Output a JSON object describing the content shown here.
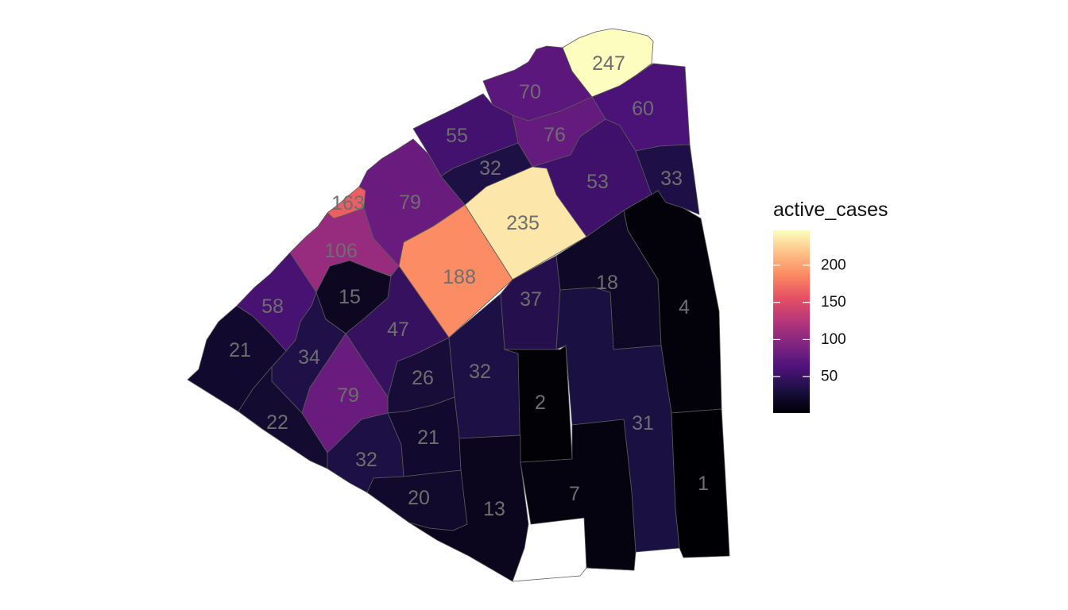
{
  "map": {
    "fill_variable": "active_cases",
    "palette": "magma",
    "regions": [
      {
        "id": "r247",
        "value": 247,
        "label": "247"
      },
      {
        "id": "r70",
        "value": 70,
        "label": "70"
      },
      {
        "id": "r60",
        "value": 60,
        "label": "60"
      },
      {
        "id": "r55",
        "value": 55,
        "label": "55"
      },
      {
        "id": "r76",
        "value": 76,
        "label": "76"
      },
      {
        "id": "r32a",
        "value": 32,
        "label": "32"
      },
      {
        "id": "r53",
        "value": 53,
        "label": "53"
      },
      {
        "id": "r33",
        "value": 33,
        "label": "33"
      },
      {
        "id": "r163",
        "value": 163,
        "label": "163"
      },
      {
        "id": "r79a",
        "value": 79,
        "label": "79"
      },
      {
        "id": "r235",
        "value": 235,
        "label": "235"
      },
      {
        "id": "r106",
        "value": 106,
        "label": "106"
      },
      {
        "id": "r188",
        "value": 188,
        "label": "188"
      },
      {
        "id": "r15",
        "value": 15,
        "label": "15"
      },
      {
        "id": "r58",
        "value": 58,
        "label": "58"
      },
      {
        "id": "r37",
        "value": 37,
        "label": "37"
      },
      {
        "id": "r18",
        "value": 18,
        "label": "18"
      },
      {
        "id": "r4",
        "value": 4,
        "label": "4"
      },
      {
        "id": "r47",
        "value": 47,
        "label": "47"
      },
      {
        "id": "r21a",
        "value": 21,
        "label": "21"
      },
      {
        "id": "r34",
        "value": 34,
        "label": "34"
      },
      {
        "id": "r26",
        "value": 26,
        "label": "26"
      },
      {
        "id": "r32b",
        "value": 32,
        "label": "32"
      },
      {
        "id": "r79b",
        "value": 79,
        "label": "79"
      },
      {
        "id": "r2",
        "value": 2,
        "label": "2"
      },
      {
        "id": "r22",
        "value": 22,
        "label": "22"
      },
      {
        "id": "r21b",
        "value": 21,
        "label": "21"
      },
      {
        "id": "r31",
        "value": 31,
        "label": "31"
      },
      {
        "id": "r32c",
        "value": 32,
        "label": "32"
      },
      {
        "id": "r20",
        "value": 20,
        "label": "20"
      },
      {
        "id": "r13",
        "value": 13,
        "label": "13"
      },
      {
        "id": "r7",
        "value": 7,
        "label": "7"
      },
      {
        "id": "r1",
        "value": 1,
        "label": "1"
      }
    ]
  },
  "legend": {
    "title": "active_cases",
    "min": 1,
    "max": 247,
    "ticks": [
      {
        "value": 200,
        "label": "200"
      },
      {
        "value": 150,
        "label": "150"
      },
      {
        "value": 100,
        "label": "100"
      },
      {
        "value": 50,
        "label": "50"
      }
    ]
  }
}
